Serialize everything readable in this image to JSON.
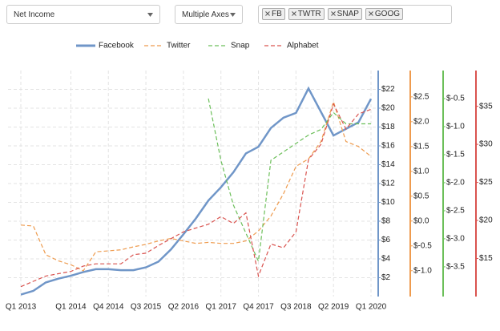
{
  "controls": {
    "metric": "Net Income",
    "axes_mode": "Multiple Axes",
    "tickers": [
      "FB",
      "TWTR",
      "SNAP",
      "GOOG"
    ]
  },
  "chart_data": {
    "type": "line",
    "categories": [
      "Q1 2013",
      null,
      null,
      null,
      "Q1 2014",
      null,
      null,
      "Q4 2014",
      null,
      null,
      "Q3 2015",
      null,
      null,
      "Q2 2016",
      null,
      null,
      "Q1 2017",
      null,
      null,
      "Q4 2017",
      null,
      null,
      "Q3 2018",
      null,
      null,
      "Q2 2019",
      null,
      null,
      "Q1 2020"
    ],
    "series": [
      {
        "name": "Facebook",
        "color": "#7096c8",
        "axis": "y",
        "values": [
          0.2,
          0.6,
          1.5,
          1.9,
          2.2,
          2.6,
          2.9,
          2.9,
          2.8,
          2.8,
          3.1,
          3.7,
          5.0,
          6.6,
          8.3,
          10.2,
          11.6,
          13.2,
          15.2,
          15.9,
          17.9,
          19.0,
          19.5,
          22.1,
          19.6,
          17.1,
          17.8,
          18.5,
          21.0
        ]
      },
      {
        "name": "Twitter",
        "color": "#ee9b4e",
        "axis": "y2",
        "values": [
          -0.08,
          -0.1,
          -0.68,
          -0.8,
          -0.88,
          -1.0,
          -0.62,
          -0.6,
          -0.58,
          -0.52,
          -0.47,
          -0.4,
          -0.35,
          -0.4,
          -0.45,
          -0.43,
          -0.45,
          -0.45,
          -0.4,
          -0.2,
          0.1,
          0.55,
          1.1,
          1.25,
          1.6,
          2.4,
          1.6,
          1.5,
          1.3
        ]
      },
      {
        "name": "Snap",
        "color": "#6cbf5a",
        "axis": "y3",
        "values": [
          null,
          null,
          null,
          null,
          null,
          null,
          null,
          null,
          null,
          null,
          null,
          null,
          null,
          null,
          null,
          -0.5,
          -1.6,
          -2.4,
          -2.9,
          -3.4,
          -1.6,
          -1.45,
          -1.3,
          -1.15,
          -1.05,
          -0.75,
          -0.95,
          -0.95,
          -0.95
        ]
      },
      {
        "name": "Alphabet",
        "color": "#d9534f",
        "axis": "y4",
        "values": [
          11.3,
          12.0,
          12.7,
          13.0,
          13.3,
          14.0,
          14.3,
          14.3,
          14.3,
          15.5,
          15.7,
          16.7,
          17.6,
          18.5,
          19.0,
          19.5,
          20.5,
          19.6,
          21.0,
          12.7,
          16.9,
          16.4,
          18.5,
          28.0,
          30.0,
          35.3,
          32.0,
          34.0,
          34.6
        ]
      }
    ],
    "ylim": [
      0,
      24
    ],
    "yticks": [
      {
        "value": 2,
        "label": "$2"
      },
      {
        "value": 4,
        "label": "$4"
      },
      {
        "value": 6,
        "label": "$6"
      },
      {
        "value": 8,
        "label": "$8"
      },
      {
        "value": 10,
        "label": "$10"
      },
      {
        "value": 12,
        "label": "$12"
      },
      {
        "value": 14,
        "label": "$14"
      },
      {
        "value": 16,
        "label": "$16"
      },
      {
        "value": 18,
        "label": "$18"
      },
      {
        "value": 20,
        "label": "$20"
      },
      {
        "value": 22,
        "label": "$22"
      }
    ],
    "y2lim": [
      -1.52,
      3.03
    ],
    "y2ticks": [
      {
        "value": -1.0,
        "label": "$-1.0"
      },
      {
        "value": -0.5,
        "label": "$-0.5"
      },
      {
        "value": 0,
        "label": "$0.0"
      },
      {
        "value": 0.5,
        "label": "$0.5"
      },
      {
        "value": 1.0,
        "label": "$1.0"
      },
      {
        "value": 1.5,
        "label": "$1.5"
      },
      {
        "value": 2.0,
        "label": "$2.0"
      },
      {
        "value": 2.5,
        "label": "$2.5"
      }
    ],
    "y3lim": [
      -4.03,
      0.0
    ],
    "y3ticks": [
      {
        "value": -3.5,
        "label": "$-3.5"
      },
      {
        "value": -3.0,
        "label": "$-3.0"
      },
      {
        "value": -2.5,
        "label": "$-2.5"
      },
      {
        "value": -2.0,
        "label": "$-2.0"
      },
      {
        "value": -1.5,
        "label": "$-1.5"
      },
      {
        "value": -1.0,
        "label": "$-1.0"
      },
      {
        "value": -0.5,
        "label": "$-0.5"
      }
    ],
    "y4lim": [
      10,
      39.7
    ],
    "y4ticks": [
      {
        "value": 15,
        "label": "$15"
      },
      {
        "value": 20,
        "label": "$20"
      },
      {
        "value": 25,
        "label": "$25"
      },
      {
        "value": 30,
        "label": "$30"
      },
      {
        "value": 35,
        "label": "$35"
      }
    ],
    "grid": true,
    "legend": "top"
  }
}
